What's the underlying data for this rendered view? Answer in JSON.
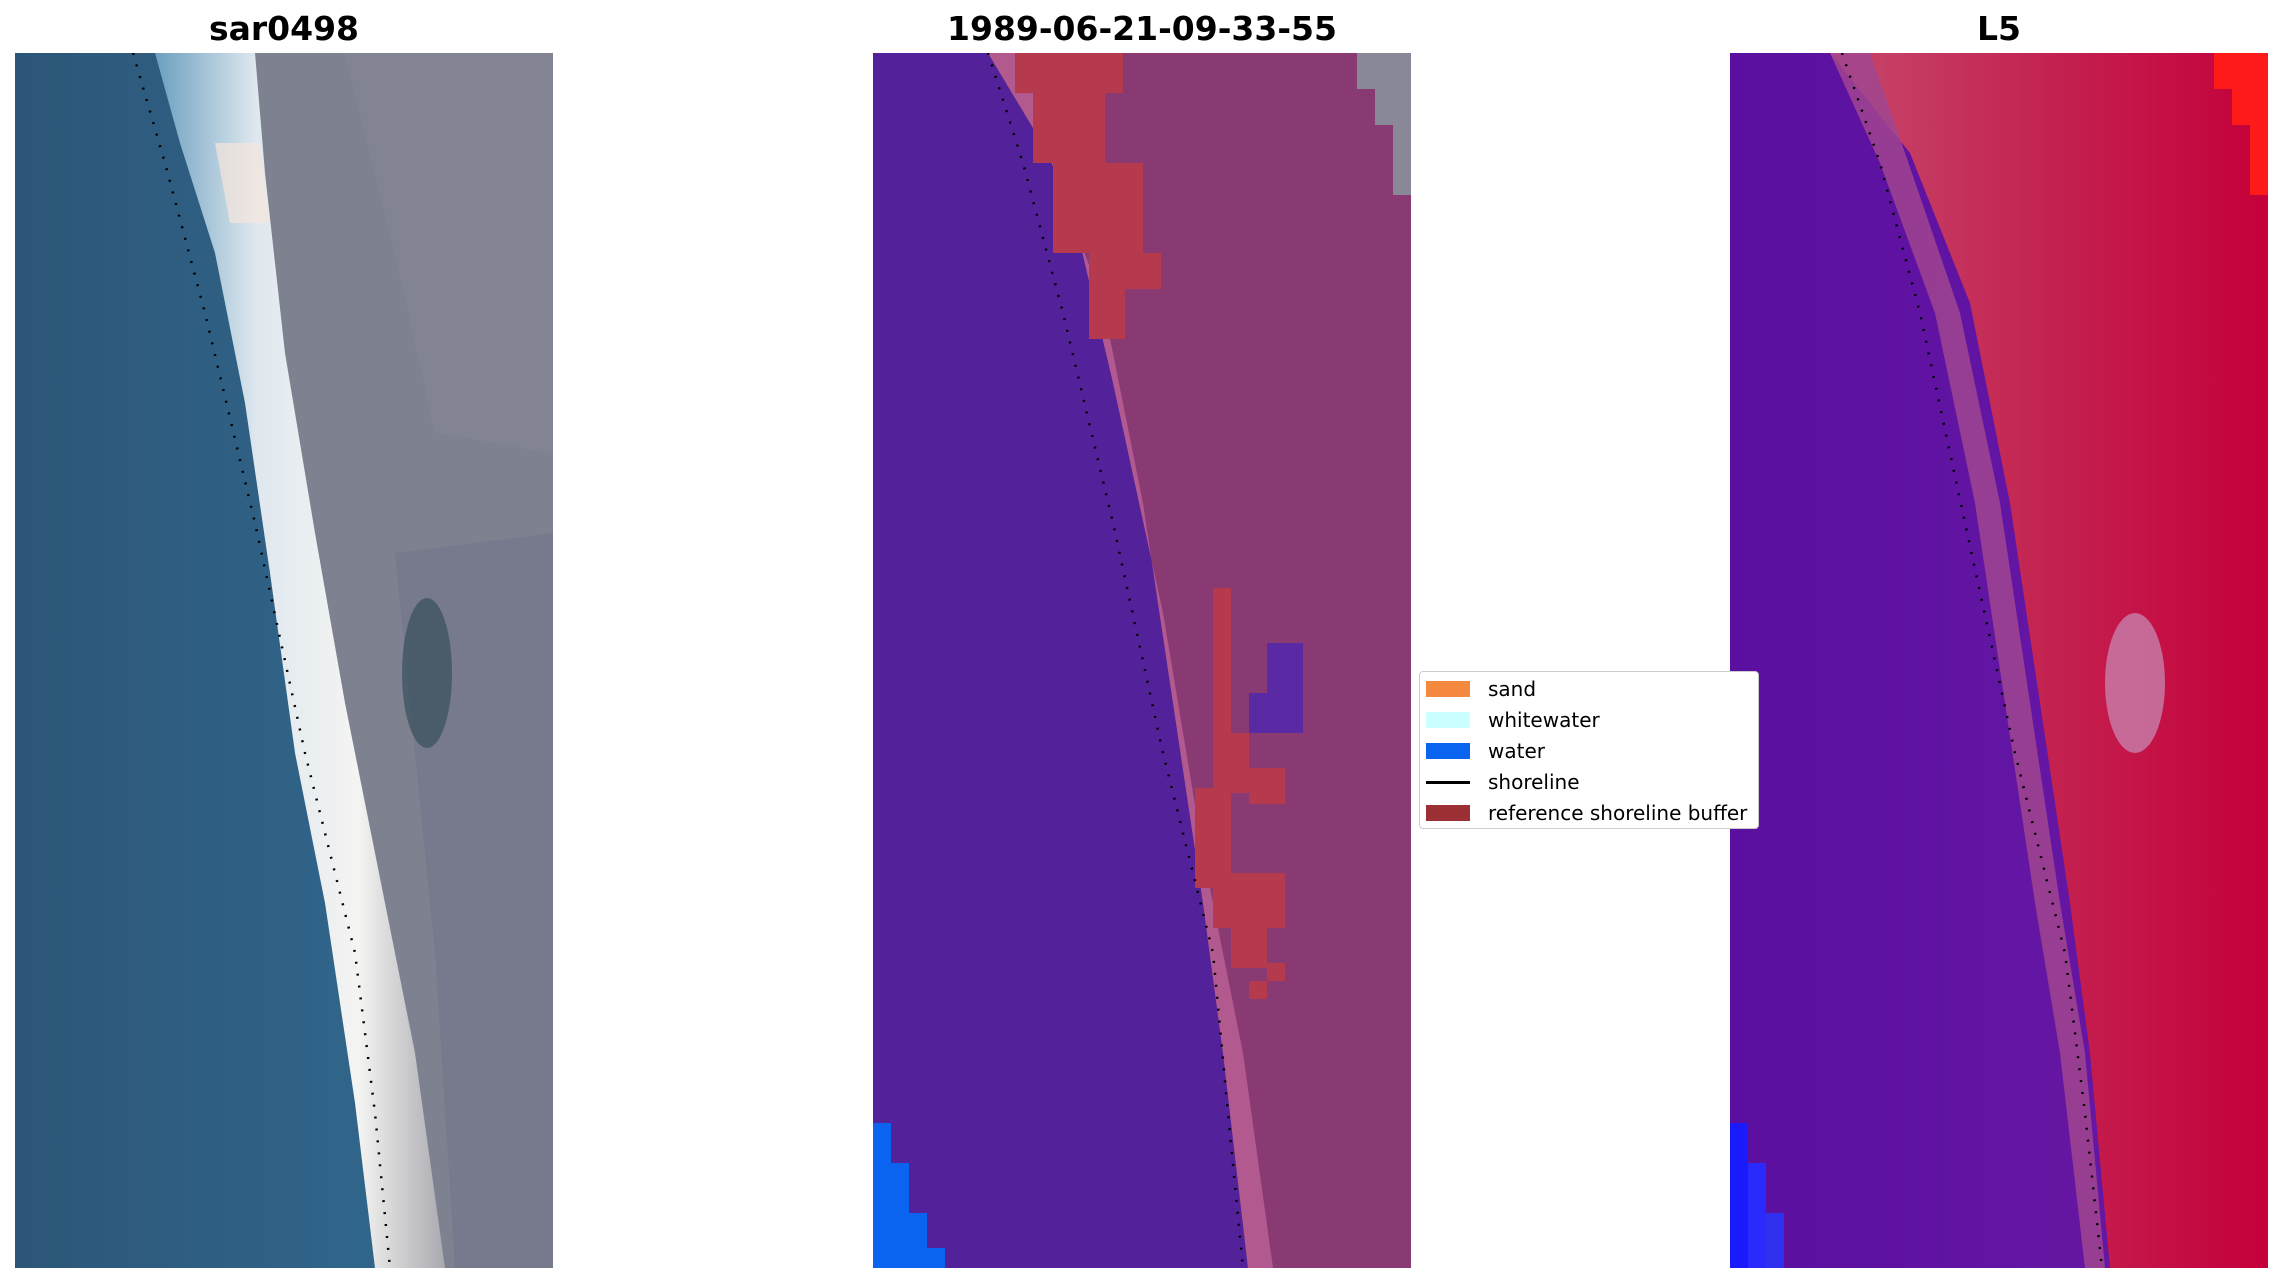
{
  "panels": [
    {
      "title": "sar0498",
      "kind": "rgb"
    },
    {
      "title": "1989-06-21-09-33-55",
      "kind": "classified"
    },
    {
      "title": "L5",
      "kind": "index"
    }
  ],
  "legend": {
    "items": [
      {
        "label": "sand",
        "type": "patch",
        "color": "#f5883f"
      },
      {
        "label": "whitewater",
        "type": "patch",
        "color": "#ccffff"
      },
      {
        "label": "water",
        "type": "patch",
        "color": "#0a64f0"
      },
      {
        "label": "shoreline",
        "type": "line",
        "color": "#000000"
      },
      {
        "label": "reference shoreline buffer",
        "type": "patch",
        "color": "#9b2f33"
      }
    ]
  },
  "colors": {
    "ocean_rgb": "#2f5f85",
    "land_rgb": "#7e8190",
    "surf_rgb": "#e8eef2",
    "water_class": "#53229a",
    "land_class": "#8a3a72",
    "buffer_class": "#b63a57",
    "index_low": "#5a0fa0",
    "index_high": "#c50034"
  }
}
